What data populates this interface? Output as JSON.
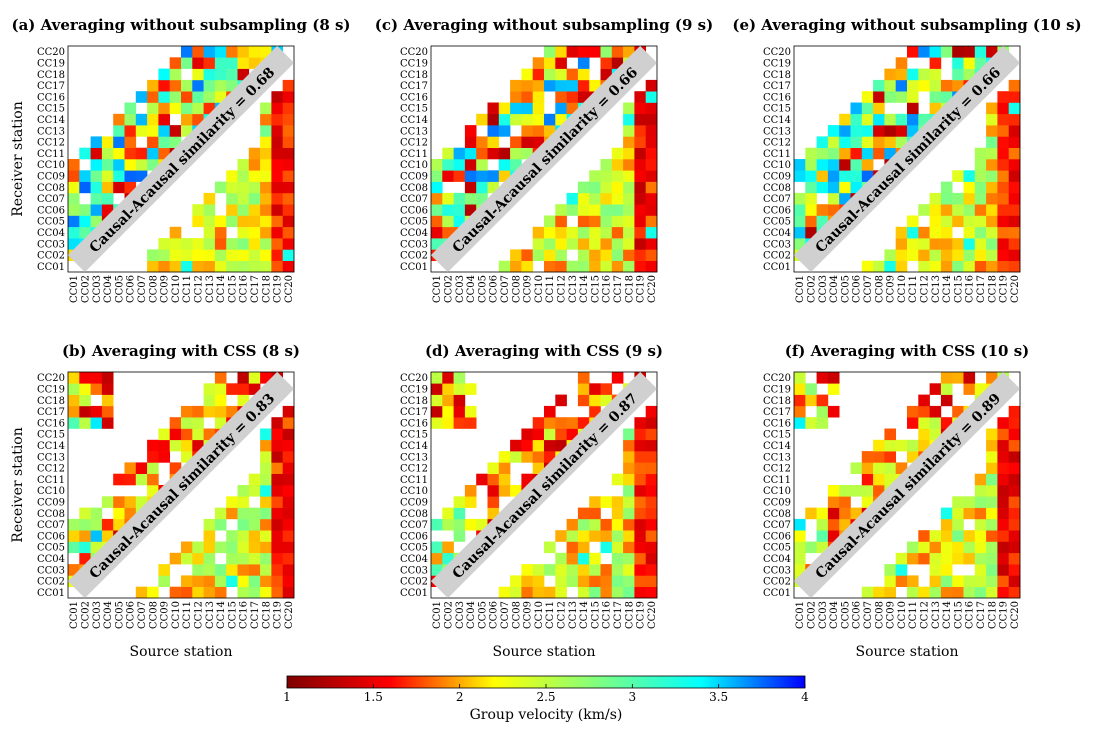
{
  "figure": {
    "colorbar": {
      "label": "Group velocity (km/s)",
      "min": 1,
      "max": 4,
      "ticks": [
        1,
        1.5,
        2,
        2.5,
        3,
        3.5,
        4
      ],
      "tick_labels": [
        "1",
        "1.5",
        "2",
        "2.5",
        "3",
        "3.5",
        "4"
      ],
      "colormap": [
        "#7f0000",
        "#ff0000",
        "#ffff00",
        "#80ff80",
        "#00ffff",
        "#0000ff"
      ]
    },
    "stations": [
      "CC01",
      "CC02",
      "CC03",
      "CC04",
      "CC05",
      "CC06",
      "CC07",
      "CC08",
      "CC09",
      "CC10",
      "CC11",
      "CC12",
      "CC13",
      "CC14",
      "CC15",
      "CC16",
      "CC17",
      "CC18",
      "CC19",
      "CC20"
    ],
    "x_axis_label": "Source station",
    "y_axis_label": "Receiver station"
  },
  "chart_data": [
    {
      "type": "heatmap",
      "title": "(a) Averaging without subsampling (8 s)",
      "annotation": "Causal-Acausal similarity = 0.68",
      "similarity": 0.68,
      "period_s": 8,
      "method": "no subsampling",
      "ylabel": "Receiver station",
      "xlabel": ""
    },
    {
      "type": "heatmap",
      "title": "(b) Averaging with CSS (8 s)",
      "annotation": "Causal-Acausal similarity = 0.83",
      "similarity": 0.83,
      "period_s": 8,
      "method": "CSS",
      "ylabel": "Receiver station",
      "xlabel": "Source station"
    },
    {
      "type": "heatmap",
      "title": "(c) Averaging without subsampling (9 s)",
      "annotation": "Causal-Acausal similarity = 0.66",
      "similarity": 0.66,
      "period_s": 9,
      "method": "no subsampling",
      "ylabel": "",
      "xlabel": ""
    },
    {
      "type": "heatmap",
      "title": "(d) Averaging with CSS (9 s)",
      "annotation": "Causal-Acausal similarity = 0.87",
      "similarity": 0.87,
      "period_s": 9,
      "method": "CSS",
      "ylabel": "",
      "xlabel": "Source station"
    },
    {
      "type": "heatmap",
      "title": "(e) Averaging without subsampling (10 s)",
      "annotation": "Causal-Acausal similarity = 0.66",
      "similarity": 0.66,
      "period_s": 10,
      "method": "no subsampling",
      "ylabel": "",
      "xlabel": ""
    },
    {
      "type": "heatmap",
      "title": "(f) Averaging with CSS (10 s)",
      "annotation": "Causal-Acausal similarity = 0.89",
      "similarity": 0.89,
      "period_s": 10,
      "method": "CSS",
      "ylabel": "",
      "xlabel": "Source station"
    }
  ]
}
